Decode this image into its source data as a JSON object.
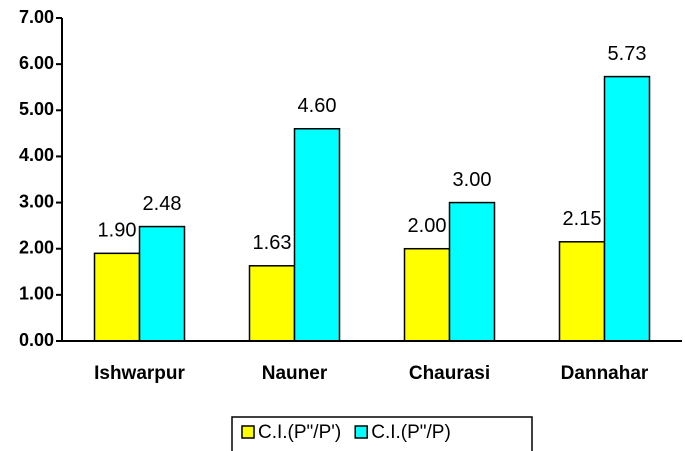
{
  "chart_data": {
    "type": "bar",
    "categories": [
      "Ishwarpur",
      "Nauner",
      "Chaurasi",
      "Dannahar"
    ],
    "series": [
      {
        "name": "C.I.(P\"/P')",
        "color": "#ffff00",
        "values": [
          1.9,
          1.63,
          2.0,
          2.15
        ],
        "value_labels": [
          "1.90",
          "1.63",
          "2.00",
          "2.15"
        ]
      },
      {
        "name": "C.I.(P\"/P)",
        "color": "#00ffff",
        "values": [
          2.48,
          4.6,
          3.0,
          5.73
        ],
        "value_labels": [
          "2.48",
          "4.60",
          "3.00",
          "5.73"
        ]
      }
    ],
    "ylim": [
      0,
      7
    ],
    "yticks": [
      {
        "value": 0,
        "label": "0.00"
      },
      {
        "value": 1,
        "label": "1.00"
      },
      {
        "value": 2,
        "label": "2.00"
      },
      {
        "value": 3,
        "label": "3.00"
      },
      {
        "value": 4,
        "label": "4.00"
      },
      {
        "value": 5,
        "label": "5.00"
      },
      {
        "value": 6,
        "label": "6.00"
      },
      {
        "value": 7,
        "label": "7.00"
      }
    ],
    "grid": false,
    "legend": "bottom"
  }
}
